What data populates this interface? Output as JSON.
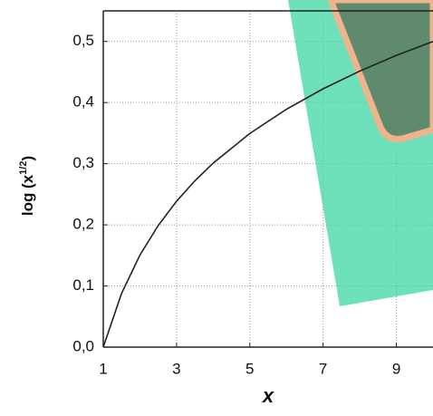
{
  "chart_data": {
    "type": "line",
    "y_label": {
      "base": "log (x",
      "sup": "1/2",
      "close": ")"
    },
    "x_label": "x",
    "x": [
      1,
      1.5,
      2,
      2.5,
      3,
      3.5,
      4,
      5,
      6,
      7,
      8,
      9,
      10
    ],
    "series": [
      {
        "name": "log (x^1/2)",
        "color": "#222222",
        "values": [
          0,
          0.088,
          0.1505,
          0.199,
          0.2386,
          0.272,
          0.301,
          0.3495,
          0.3891,
          0.4225,
          0.4515,
          0.4771,
          0.5
        ]
      }
    ],
    "xlim": [
      1,
      10
    ],
    "ylim": [
      0,
      0.55
    ],
    "xticks": [
      1,
      3,
      5,
      7,
      9
    ],
    "yticks": [
      {
        "value": 0,
        "label": "0,0"
      },
      {
        "value": 0.1,
        "label": "0,1"
      },
      {
        "value": 0.2,
        "label": "0,2"
      },
      {
        "value": 0.3,
        "label": "0,3"
      },
      {
        "value": 0.4,
        "label": "0,4"
      },
      {
        "value": 0.5,
        "label": "0,5"
      }
    ],
    "grid": true
  }
}
